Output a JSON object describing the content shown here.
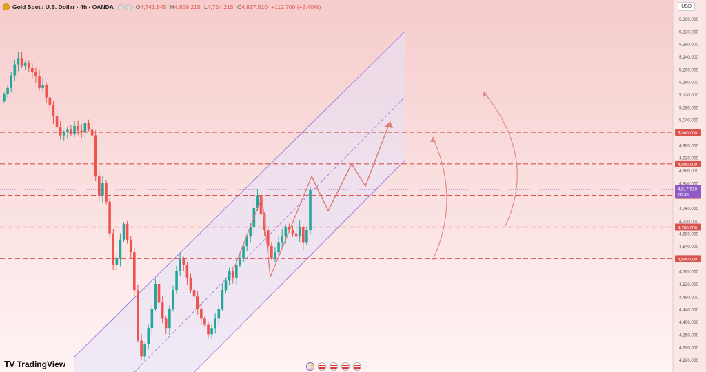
{
  "header": {
    "symbol": "Gold Spot / U.S. Dollar · 4h · OANDA",
    "open_label": "O",
    "open": "4,741.845",
    "high_label": "H",
    "high": "4,858.215",
    "low_label": "L",
    "low": "4,714.215",
    "close_label": "C",
    "close": "4,817.510",
    "change": "+112.700 (+2.40%)"
  },
  "currency": "USD",
  "logo": "TradingView",
  "colors": {
    "bull": "#26a69a",
    "bear": "#ef5350",
    "candle": "#d9534f",
    "level_line": "#d9534f",
    "channel": "#9b7fe0",
    "price_tag": "#8e5cc9"
  },
  "chart_data": {
    "type": "candlestick",
    "title": "Gold Spot / U.S. Dollar · 4h · OANDA",
    "ylim": [
      4260,
      5400
    ],
    "y_ticks": [
      5360,
      5320,
      5280,
      5240,
      5200,
      5160,
      5120,
      5080,
      5040,
      4960,
      4920,
      4880,
      4840,
      4760,
      4720,
      4680,
      4640,
      4560,
      4520,
      4480,
      4440,
      4400,
      4360,
      4320,
      4280
    ],
    "tick_labels": [
      "5,360.000",
      "5,320.000",
      "5,280.000",
      "5,240.000",
      "5,200.000",
      "5,160.000",
      "5,120.000",
      "5,080.000",
      "5,040.000",
      "4,960.000",
      "4,920.000",
      "4,880.000",
      "4,840.000",
      "4,760.000",
      "4,720.000",
      "4,680.000",
      "4,640.000",
      "4,560.000",
      "4,520.000",
      "4,480.000",
      "4,440.000",
      "4,400.000",
      "4,360.000",
      "4,320.000",
      "4,280.000"
    ],
    "levels": [
      {
        "value": 5000,
        "label": "5,000.000"
      },
      {
        "value": 4900,
        "label": "4,900.000"
      },
      {
        "value": 4800,
        "label": "4,800.000"
      },
      {
        "value": 4700,
        "label": "4,700.000"
      },
      {
        "value": 4600,
        "label": "4,600.000"
      }
    ],
    "last_price": {
      "value": 4817.51,
      "label": "4,817.510",
      "countdown": "16:30"
    },
    "closes": [
      5120,
      5140,
      5180,
      5215,
      5235,
      5210,
      5218,
      5205,
      5190,
      5178,
      5140,
      5150,
      5110,
      5085,
      5050,
      5015,
      4990,
      5000,
      5010,
      4995,
      5020,
      5005,
      5000,
      5030,
      5010,
      4990,
      4860,
      4800,
      4840,
      4780,
      4680,
      4580,
      4600,
      4660,
      4710,
      4660,
      4620,
      4500,
      4340,
      4290,
      4330,
      4380,
      4440,
      4520,
      4460,
      4410,
      4380,
      4440,
      4500,
      4560,
      4600,
      4580,
      4540,
      4500,
      4480,
      4440,
      4410,
      4390,
      4360,
      4380,
      4410,
      4440,
      4500,
      4530,
      4560,
      4540,
      4580,
      4600,
      4640,
      4670,
      4700,
      4760,
      4800,
      4740,
      4690,
      4640,
      4600,
      4620,
      4650,
      4670,
      4700,
      4690,
      4680,
      4670,
      4700,
      4650,
      4690,
      4817
    ]
  }
}
